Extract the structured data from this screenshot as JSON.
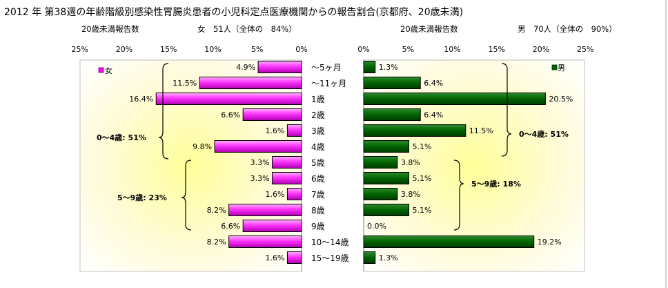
{
  "title": "2012 年 第38週の年齢階級別感染性胃腸炎患者の小児科定点医療機関からの報告割合(京都府、20歳未満)",
  "chart_data": {
    "type": "bar",
    "categories": [
      "～5ヶ月",
      "～11ヶ月",
      "1歳",
      "2歳",
      "3歳",
      "4歳",
      "5歳",
      "6歳",
      "7歳",
      "8歳",
      "9歳",
      "10～14歳",
      "15～19歳"
    ],
    "female": {
      "legend": "女",
      "subtitle_left": "20歳未満報告数",
      "subtitle_right": "女　51人（全体の　84%）",
      "values": [
        4.9,
        11.5,
        16.4,
        6.6,
        1.6,
        9.8,
        3.3,
        3.3,
        1.6,
        8.2,
        6.6,
        8.2,
        1.6
      ],
      "labels": [
        "4.9%",
        "11.5%",
        "16.4%",
        "6.6%",
        "1.6%",
        "9.8%",
        "3.3%",
        "3.3%",
        "1.6%",
        "8.2%",
        "6.6%",
        "8.2%",
        "1.6%"
      ],
      "ticks": [
        "25%",
        "20%",
        "15%",
        "10%",
        "5%",
        "0%"
      ],
      "xlim": [
        0,
        25
      ],
      "color": "#ff00ff",
      "groups": [
        {
          "label": "0～4歳: 51%",
          "from": 0,
          "to": 5
        },
        {
          "label": "5～9歳: 23%",
          "from": 6,
          "to": 10
        }
      ]
    },
    "male": {
      "legend": "男",
      "subtitle_left": "20歳未満報告数",
      "subtitle_right": "男　70人（全体の　90%）",
      "values": [
        1.3,
        6.4,
        20.5,
        6.4,
        11.5,
        5.1,
        3.8,
        5.1,
        3.8,
        5.1,
        0.0,
        19.2,
        1.3
      ],
      "labels": [
        "1.3%",
        "6.4%",
        "20.5%",
        "6.4%",
        "11.5%",
        "5.1%",
        "3.8%",
        "5.1%",
        "3.8%",
        "5.1%",
        "0.0%",
        "19.2%",
        "1.3%"
      ],
      "ticks": [
        "0%",
        "5%",
        "10%",
        "15%",
        "20%",
        "25%"
      ],
      "xlim": [
        0,
        25
      ],
      "color": "#006400",
      "groups": [
        {
          "label": "0～4歳: 51%",
          "from": 0,
          "to": 5
        },
        {
          "label": "5～9歳: 18%",
          "from": 6,
          "to": 10
        }
      ]
    },
    "grid": false
  }
}
